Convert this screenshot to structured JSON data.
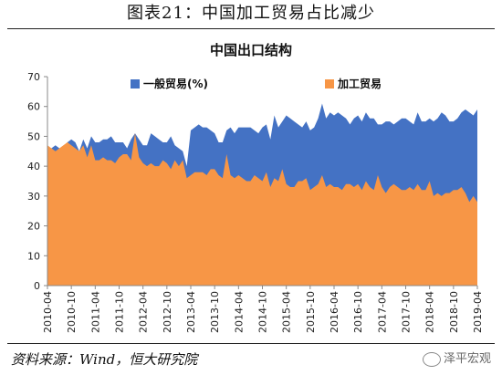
{
  "figure_title": "图表21：中国加工贸易占比减少",
  "footer": "资料来源：Wind，恒大研究院",
  "watermark": "泽平宏观",
  "colors": {
    "general_trade": "#4472C4",
    "processing_trade": "#F79646",
    "axis": "#888888"
  },
  "chart_data": {
    "type": "area",
    "title": "中国出口结构",
    "legend_position": "top",
    "xlabel": "",
    "ylabel": "",
    "ylim": [
      0,
      70
    ],
    "yticks": [
      "0",
      "10",
      "20",
      "30",
      "40",
      "50",
      "60",
      "70"
    ],
    "grid": false,
    "x_tick_labels": [
      "2010-04",
      "2010-10",
      "2011-04",
      "2011-10",
      "2012-04",
      "2012-10",
      "2013-04",
      "2013-10",
      "2014-04",
      "2014-10",
      "2015-04",
      "2015-10",
      "2016-04",
      "2016-10",
      "2017-04",
      "2017-10",
      "2018-04",
      "2018-10",
      "2019-04"
    ],
    "x": [
      "2010-04",
      "2010-05",
      "2010-06",
      "2010-07",
      "2010-08",
      "2010-09",
      "2010-10",
      "2010-11",
      "2010-12",
      "2011-01",
      "2011-02",
      "2011-03",
      "2011-04",
      "2011-05",
      "2011-06",
      "2011-07",
      "2011-08",
      "2011-09",
      "2011-10",
      "2011-11",
      "2011-12",
      "2012-01",
      "2012-02",
      "2012-03",
      "2012-04",
      "2012-05",
      "2012-06",
      "2012-07",
      "2012-08",
      "2012-09",
      "2012-10",
      "2012-11",
      "2012-12",
      "2013-01",
      "2013-02",
      "2013-03",
      "2013-04",
      "2013-05",
      "2013-06",
      "2013-07",
      "2013-08",
      "2013-09",
      "2013-10",
      "2013-11",
      "2013-12",
      "2014-01",
      "2014-02",
      "2014-03",
      "2014-04",
      "2014-05",
      "2014-06",
      "2014-07",
      "2014-08",
      "2014-09",
      "2014-10",
      "2014-11",
      "2014-12",
      "2015-01",
      "2015-02",
      "2015-03",
      "2015-04",
      "2015-05",
      "2015-06",
      "2015-07",
      "2015-08",
      "2015-09",
      "2015-10",
      "2015-11",
      "2015-12",
      "2016-01",
      "2016-02",
      "2016-03",
      "2016-04",
      "2016-05",
      "2016-06",
      "2016-07",
      "2016-08",
      "2016-09",
      "2016-10",
      "2016-11",
      "2016-12",
      "2017-01",
      "2017-02",
      "2017-03",
      "2017-04",
      "2017-05",
      "2017-06",
      "2017-07",
      "2017-08",
      "2017-09",
      "2017-10",
      "2017-11",
      "2017-12",
      "2018-01",
      "2018-02",
      "2018-03",
      "2018-04",
      "2018-05",
      "2018-06",
      "2018-07",
      "2018-08",
      "2018-09",
      "2018-10",
      "2018-11",
      "2018-12",
      "2019-01",
      "2019-02",
      "2019-03",
      "2019-04"
    ],
    "series": [
      {
        "name": "一般贸易(%)",
        "values": [
          46,
          46,
          47,
          46,
          46,
          48,
          49,
          48,
          45,
          49,
          46,
          50,
          48,
          48,
          49,
          49,
          50,
          48,
          48,
          48,
          46,
          49,
          51,
          49,
          47,
          47,
          51,
          50,
          49,
          48,
          48,
          50,
          47,
          46,
          45,
          40,
          52,
          53,
          54,
          53,
          53,
          52,
          51,
          48,
          48,
          52,
          53,
          51,
          53,
          53,
          53,
          53,
          52,
          51,
          53,
          54,
          49,
          57,
          53,
          55,
          57,
          56,
          55,
          54,
          53,
          55,
          52,
          53,
          56,
          61,
          56,
          58,
          57,
          58,
          57,
          56,
          54,
          56,
          57,
          55,
          58,
          56,
          56,
          54,
          54,
          55,
          55,
          54,
          55,
          56,
          56,
          55,
          54,
          58,
          55,
          55,
          56,
          55,
          56,
          58,
          57,
          55,
          55,
          56,
          58,
          59,
          58,
          57,
          59
        ]
      },
      {
        "name": "加工贸易",
        "values": [
          47,
          46,
          45,
          46,
          47,
          48,
          47,
          46,
          45,
          47,
          43,
          47,
          42,
          42,
          43,
          42,
          42,
          41,
          43,
          44,
          44,
          42,
          51,
          43,
          41,
          40,
          41,
          40,
          40,
          42,
          41,
          39,
          42,
          40,
          42,
          36,
          37,
          38,
          38,
          38,
          37,
          39,
          39,
          37,
          36,
          44,
          37,
          36,
          37,
          36,
          35,
          35,
          37,
          36,
          35,
          38,
          33,
          36,
          35,
          39,
          34,
          33,
          33,
          35,
          35,
          36,
          32,
          33,
          34,
          37,
          33,
          34,
          33,
          33,
          32,
          34,
          34,
          33,
          34,
          32,
          35,
          33,
          32,
          37,
          33,
          31,
          33,
          34,
          33,
          32,
          32,
          33,
          32,
          34,
          32,
          32,
          35,
          30,
          31,
          30,
          31,
          31,
          32,
          32,
          33,
          31,
          28,
          30,
          28
        ]
      }
    ]
  }
}
